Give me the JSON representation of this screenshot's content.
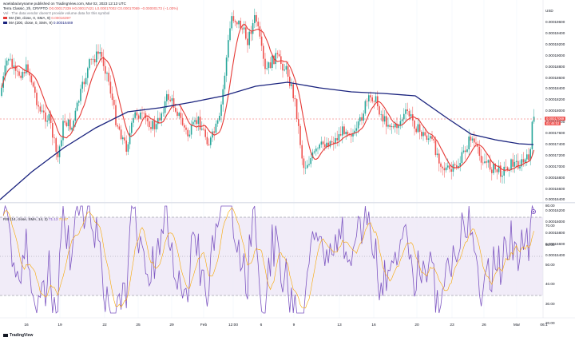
{
  "header": {
    "line1": "woelaba/anyname published on TradingView.com, Mar 02, 2023 12:13 UTC",
    "line2_symbol": "Terra Classic, 2h, CRYPTO",
    "line2_values": "O0.00017339 H0.00017421 L0.00017002 C0.00017069 −0.00000173 (−1.00%)",
    "line3": "Vol · The data vendor doesn't provide volume data for this symbol",
    "line4_label": "MA (50, close, 0, SMA, 9)",
    "line4_value": "0.00016397",
    "line5_label": "MA (200, close, 0, SMA, 9)",
    "line5_value": "0.00016469"
  },
  "rsi_header": {
    "label": "RSI (14, close, SMA, 14, 2)",
    "v1": "71.13",
    "v2": "71.47"
  },
  "currency": "USD",
  "price_ticks": [
    "0.00019600",
    "0.00019400",
    "0.00019200",
    "0.00019000",
    "0.00018800",
    "0.00018600",
    "0.00018400",
    "0.00018200",
    "0.00018000",
    "0.00017800",
    "0.00017600",
    "0.00017400",
    "0.00017200",
    "0.00017000",
    "0.00016800",
    "0.00016600",
    "0.00016400",
    "0.00016200",
    "0.00016000",
    "0.00015800",
    "0.00015600",
    "0.00015400"
  ],
  "price_tag_1": "0.00017069",
  "price_tag_2": "01:46:52",
  "rsi_ticks": [
    "80.00",
    "70.00",
    "60.00",
    "50.00",
    "40.00",
    "30.00",
    "20.00"
  ],
  "x_ticks": [
    "16",
    "19",
    "22",
    "25",
    "29",
    "Feb",
    "12:00",
    "6",
    "9",
    "13",
    "16",
    "20",
    "23",
    "26",
    "Mar",
    "06:1"
  ],
  "footer_logo": "TradingView",
  "colors": {
    "up": "#26a69a",
    "down": "#ef5350",
    "ma50": "#e53935",
    "ma200": "#1a237e",
    "rsi": "#7e57c2",
    "rsi_ma": "#f7a600",
    "band": "#ede7f6"
  }
}
